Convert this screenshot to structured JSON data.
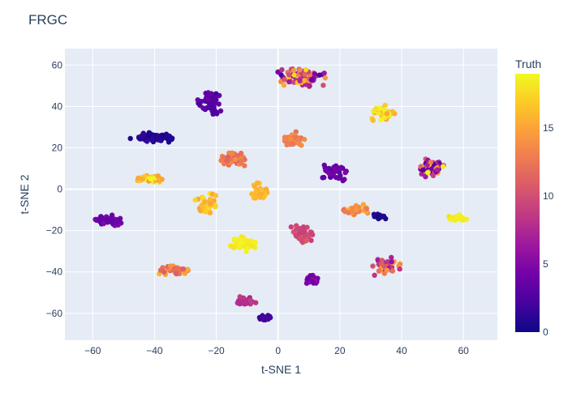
{
  "chart_data": {
    "type": "scatter",
    "title": "FRGC",
    "xlabel": "t-SNE 1",
    "ylabel": "t-SNE 2",
    "xlim": [
      -69,
      71
    ],
    "ylim": [
      -73,
      68
    ],
    "xticks": [
      -60,
      -40,
      -20,
      0,
      20,
      40,
      60
    ],
    "yticks": [
      -60,
      -40,
      -20,
      0,
      20,
      40,
      60
    ],
    "grid": true,
    "colorscale": "Plasma",
    "colorbar": {
      "title": "Truth",
      "min": 0,
      "max": 19,
      "ticks": [
        0,
        5,
        10,
        15
      ]
    },
    "clusters": [
      {
        "x": 8,
        "y": 54,
        "dx": 7,
        "dy": 4,
        "n": 80,
        "truth": [
          1,
          18
        ]
      },
      {
        "x": -22,
        "y": 42,
        "dx": 3,
        "dy": 5,
        "n": 45,
        "truth": [
          2,
          4
        ]
      },
      {
        "x": 34,
        "y": 37,
        "dx": 4,
        "dy": 3,
        "n": 40,
        "truth": [
          14,
          19
        ]
      },
      {
        "x": -40,
        "y": 25,
        "dx": 6,
        "dy": 2,
        "n": 70,
        "truth": [
          0,
          2
        ]
      },
      {
        "x": 5,
        "y": 24,
        "dx": 3,
        "dy": 3,
        "n": 40,
        "truth": [
          12,
          14
        ]
      },
      {
        "x": -15,
        "y": 15,
        "dx": 4,
        "dy": 3,
        "n": 70,
        "truth": [
          11,
          14
        ]
      },
      {
        "x": 49,
        "y": 10,
        "dx": 4,
        "dy": 4,
        "n": 70,
        "truth": [
          2,
          19
        ]
      },
      {
        "x": 18,
        "y": 8,
        "dx": 4,
        "dy": 4,
        "n": 40,
        "truth": [
          3,
          5
        ]
      },
      {
        "x": -42,
        "y": 5,
        "dx": 4,
        "dy": 1.5,
        "n": 45,
        "truth": [
          14,
          19
        ]
      },
      {
        "x": -6,
        "y": -2,
        "dx": 3,
        "dy": 4,
        "n": 35,
        "truth": [
          15,
          17
        ]
      },
      {
        "x": -23,
        "y": -7,
        "dx": 3,
        "dy": 4,
        "n": 40,
        "truth": [
          15,
          18
        ]
      },
      {
        "x": 25,
        "y": -10,
        "dx": 4,
        "dy": 2,
        "n": 40,
        "truth": [
          12,
          16
        ]
      },
      {
        "x": 33,
        "y": -13,
        "dx": 2,
        "dy": 1,
        "n": 20,
        "truth": [
          0,
          1
        ]
      },
      {
        "x": -55,
        "y": -15,
        "dx": 5,
        "dy": 2,
        "n": 55,
        "truth": [
          3,
          5
        ]
      },
      {
        "x": 58,
        "y": -14,
        "dx": 3,
        "dy": 1.5,
        "n": 25,
        "truth": [
          18,
          19
        ]
      },
      {
        "x": 8,
        "y": -22,
        "dx": 3,
        "dy": 4,
        "n": 40,
        "truth": [
          9,
          11
        ]
      },
      {
        "x": -11,
        "y": -26,
        "dx": 4,
        "dy": 3,
        "n": 60,
        "truth": [
          18,
          19
        ]
      },
      {
        "x": -34,
        "y": -39,
        "dx": 4,
        "dy": 2,
        "n": 45,
        "truth": [
          11,
          16
        ]
      },
      {
        "x": 35,
        "y": -37,
        "dx": 4,
        "dy": 4,
        "n": 45,
        "truth": [
          5,
          15
        ]
      },
      {
        "x": 11,
        "y": -44,
        "dx": 2,
        "dy": 2,
        "n": 30,
        "truth": [
          4,
          6
        ]
      },
      {
        "x": -10,
        "y": -54,
        "dx": 3,
        "dy": 1.5,
        "n": 35,
        "truth": [
          7,
          9
        ]
      },
      {
        "x": -4,
        "y": -62,
        "dx": 2,
        "dy": 1.5,
        "n": 20,
        "truth": [
          1,
          3
        ]
      }
    ]
  }
}
